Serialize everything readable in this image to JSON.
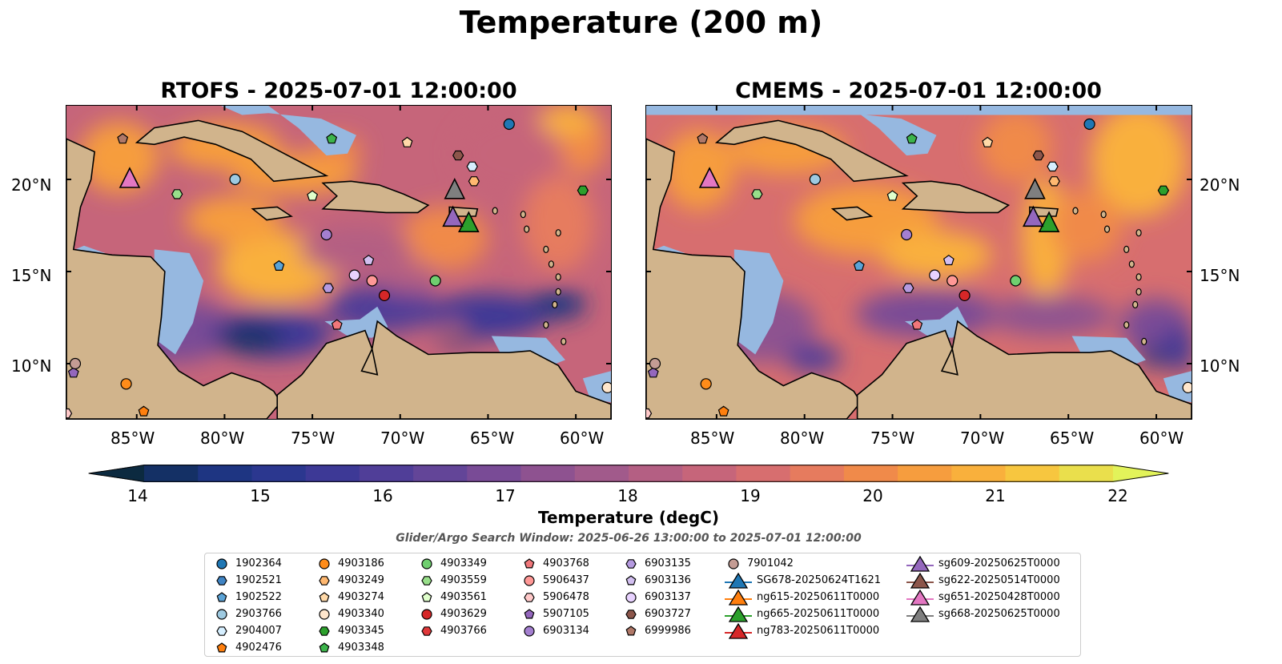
{
  "figure": {
    "title": "Temperature (200 m)",
    "search_window": "Glider/Argo Search Window: 2025-06-26 13:00:00 to 2025-07-01 12:00:00"
  },
  "panels": [
    {
      "title": "RTOFS - 2025-07-01 12:00:00",
      "model": "RTOFS"
    },
    {
      "title": "CMEMS - 2025-07-01 12:00:00",
      "model": "CMEMS"
    }
  ],
  "map_extent": {
    "lon": [
      -89,
      -58
    ],
    "lat": [
      7,
      24
    ]
  },
  "axes": {
    "lon_ticks": [
      "85°W",
      "80°W",
      "75°W",
      "70°W",
      "65°W",
      "60°W"
    ],
    "lat_ticks": [
      "20°N",
      "15°N",
      "10°N"
    ]
  },
  "colorbar": {
    "label": "Temperature (degC)",
    "min": 14,
    "max": 22,
    "step": 0.5,
    "extend": "both",
    "ticks": [
      "14",
      "15",
      "16",
      "17",
      "18",
      "19",
      "20",
      "21",
      "22"
    ],
    "colors": [
      "#0c2a40",
      "#143065",
      "#1e3582",
      "#2b378f",
      "#3d3996",
      "#503e98",
      "#634598",
      "#794b96",
      "#8e5290",
      "#a15a8b",
      "#b45f83",
      "#c6657a",
      "#d76e6f",
      "#e67b5e",
      "#f08a4a",
      "#f69d3e",
      "#f9b03c",
      "#f7c63f",
      "#eadf4c",
      "#e2f35a"
    ]
  },
  "colors": {
    "land": "#d1b48c",
    "shallow": "#96b8e0",
    "coastline": "#000000"
  },
  "floats": [
    {
      "id": "1902364",
      "marker": "circle",
      "color": "#1f77b4",
      "lon": -63.8,
      "lat": 23.0
    },
    {
      "id": "1902521",
      "marker": "hexagon",
      "color": "#3f84c4",
      "lon": null,
      "lat": null
    },
    {
      "id": "1902522",
      "marker": "pentagon",
      "color": "#5ba3d6",
      "lon": -76.9,
      "lat": 15.3
    },
    {
      "id": "2903766",
      "marker": "circle",
      "color": "#9ecae1",
      "lon": -79.4,
      "lat": 20.0
    },
    {
      "id": "2904007",
      "marker": "hexagon",
      "color": "#d6efff",
      "lon": -65.9,
      "lat": 20.7
    },
    {
      "id": "4902476",
      "marker": "pentagon",
      "color": "#ff7f0e",
      "lon": -84.6,
      "lat": 7.4
    },
    {
      "id": "4903186",
      "marker": "circle",
      "color": "#ff8c1a",
      "lon": -85.6,
      "lat": 8.9
    },
    {
      "id": "4903249",
      "marker": "hexagon",
      "color": "#ffb870",
      "lon": -65.8,
      "lat": 19.9
    },
    {
      "id": "4903274",
      "marker": "pentagon",
      "color": "#ffd9a8",
      "lon": -69.6,
      "lat": 22.0
    },
    {
      "id": "4903340",
      "marker": "circle",
      "color": "#ffe6cc",
      "lon": -58.2,
      "lat": 8.7
    },
    {
      "id": "4903345",
      "marker": "hexagon",
      "color": "#2ca02c",
      "lon": -59.6,
      "lat": 19.4
    },
    {
      "id": "4903348",
      "marker": "pentagon",
      "color": "#3cb44b",
      "lon": -73.9,
      "lat": 22.2
    },
    {
      "id": "4903349",
      "marker": "circle",
      "color": "#6fcf6f",
      "lon": -68.0,
      "lat": 14.5
    },
    {
      "id": "4903559",
      "marker": "hexagon",
      "color": "#98df8a",
      "lon": -82.7,
      "lat": 19.2
    },
    {
      "id": "4903561",
      "marker": "pentagon",
      "color": "#e0ffcc",
      "lon": -75.0,
      "lat": 19.1
    },
    {
      "id": "4903629",
      "marker": "circle",
      "color": "#d62728",
      "lon": -70.9,
      "lat": 13.7
    },
    {
      "id": "4903766",
      "marker": "hexagon",
      "color": "#e0383a",
      "lon": null,
      "lat": null
    },
    {
      "id": "4903768",
      "marker": "pentagon",
      "color": "#f0777a",
      "lon": -73.6,
      "lat": 12.1
    },
    {
      "id": "5906437",
      "marker": "circle",
      "color": "#ff9896",
      "lon": -71.6,
      "lat": 14.5
    },
    {
      "id": "5906478",
      "marker": "hexagon",
      "color": "#ffc9c9",
      "lon": -89.0,
      "lat": 7.3
    },
    {
      "id": "5907105",
      "marker": "pentagon",
      "color": "#9467bd",
      "lon": -88.6,
      "lat": 9.5
    },
    {
      "id": "6903134",
      "marker": "circle",
      "color": "#a47fd0",
      "lon": -74.2,
      "lat": 17.0
    },
    {
      "id": "6903135",
      "marker": "hexagon",
      "color": "#b59ae0",
      "lon": -74.1,
      "lat": 14.1
    },
    {
      "id": "6903136",
      "marker": "pentagon",
      "color": "#d2bff0",
      "lon": -71.8,
      "lat": 15.6
    },
    {
      "id": "6903137",
      "marker": "circle",
      "color": "#e8d2ff",
      "lon": -72.6,
      "lat": 14.8
    },
    {
      "id": "6903727",
      "marker": "hexagon",
      "color": "#8c564b",
      "lon": -66.7,
      "lat": 21.3
    },
    {
      "id": "6999986",
      "marker": "pentagon",
      "color": "#b07868",
      "lon": -85.8,
      "lat": 22.2
    },
    {
      "id": "7901042",
      "marker": "circle",
      "color": "#c49c94",
      "lon": -88.5,
      "lat": 10.0
    }
  ],
  "gliders": [
    {
      "id": "SG678-20250624T1621",
      "color": "#1f77b4",
      "lon": null,
      "lat": null
    },
    {
      "id": "ng615-20250611T0000",
      "color": "#ff7f0e",
      "lon": null,
      "lat": null
    },
    {
      "id": "ng665-20250611T0000",
      "color": "#2ca02c",
      "lon": -66.1,
      "lat": 17.6
    },
    {
      "id": "ng783-20250611T0000",
      "color": "#d62728",
      "lon": null,
      "lat": null
    },
    {
      "id": "sg609-20250625T0000",
      "color": "#9467bd",
      "lon": -67.0,
      "lat": 17.9
    },
    {
      "id": "sg622-20250514T0000",
      "color": "#8c564b",
      "lon": null,
      "lat": null
    },
    {
      "id": "sg651-20250428T0000",
      "color": "#e377c2",
      "lon": -85.4,
      "lat": 20.0
    },
    {
      "id": "sg668-20250625T0000",
      "color": "#7f7f7f",
      "lon": -66.9,
      "lat": 19.4
    }
  ]
}
